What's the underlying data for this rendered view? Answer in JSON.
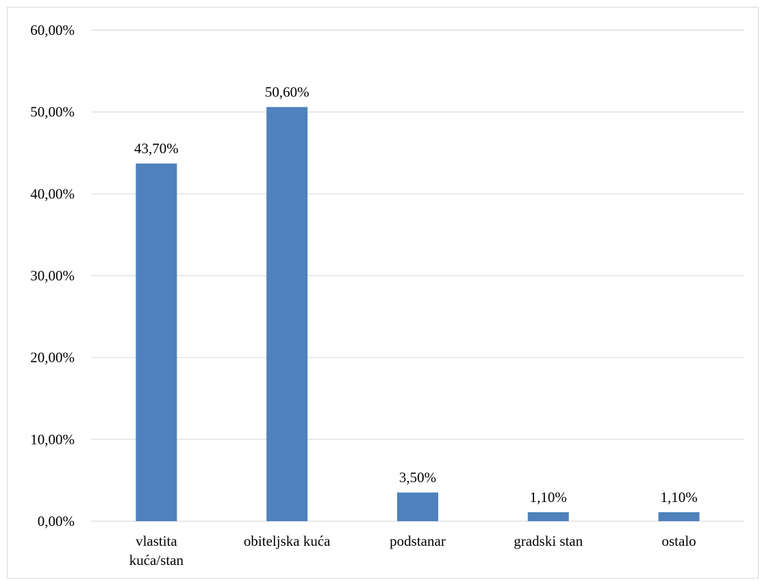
{
  "chart_data": {
    "type": "bar",
    "categories": [
      [
        "vlastita",
        "kuća/stan"
      ],
      [
        "obiteljska kuća"
      ],
      [
        "podstanar"
      ],
      [
        "gradski stan"
      ],
      [
        "ostalo"
      ]
    ],
    "values": [
      43.7,
      50.6,
      3.5,
      1.1,
      1.1
    ],
    "data_labels": [
      "43,70%",
      "50,60%",
      "3,50%",
      "1,10%",
      "1,10%"
    ],
    "y_ticks": [
      0,
      10,
      20,
      30,
      40,
      50,
      60
    ],
    "y_tick_labels": [
      "0,00%",
      "10,00%",
      "20,00%",
      "30,00%",
      "40,00%",
      "50,00%",
      "60,00%"
    ],
    "ylim": [
      0,
      60
    ],
    "grid": true,
    "bar_color": "#4f81bd"
  }
}
